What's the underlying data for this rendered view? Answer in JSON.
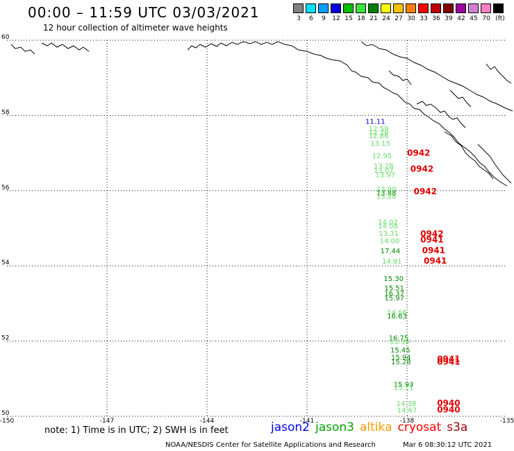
{
  "header": {
    "title": "00:00 – 11:59 UTC 03/03/2021",
    "subtitle": "12 hour collection of altimeter wave heights"
  },
  "color_scale": {
    "unit": "(ft)",
    "bins": [
      {
        "label": "3",
        "color": "#808080"
      },
      {
        "label": "6",
        "color": "#00e0ff"
      },
      {
        "label": "9",
        "color": "#00a0ff"
      },
      {
        "label": "12",
        "color": "#0000e0"
      },
      {
        "label": "15",
        "color": "#00c000"
      },
      {
        "label": "18",
        "color": "#40e040"
      },
      {
        "label": "21",
        "color": "#008000"
      },
      {
        "label": "24",
        "color": "#ffff00"
      },
      {
        "label": "27",
        "color": "#ffc000"
      },
      {
        "label": "30",
        "color": "#ff8000"
      },
      {
        "label": "33",
        "color": "#ff0000"
      },
      {
        "label": "36",
        "color": "#c00000"
      },
      {
        "label": "39",
        "color": "#800000"
      },
      {
        "label": "42",
        "color": "#a000a0"
      },
      {
        "label": "45",
        "color": "#d080d0"
      },
      {
        "label": "70",
        "color": "#ff80c0"
      },
      {
        "label": "",
        "color": "#000000"
      }
    ]
  },
  "map": {
    "lon_range": [
      -150,
      -135
    ],
    "lat_range": [
      50,
      60
    ],
    "lon_ticks": [
      "-150",
      "-147",
      "-144",
      "-141",
      "-138",
      "-135"
    ],
    "lat_ticks": [
      "60",
      "58",
      "56",
      "54",
      "52",
      "50"
    ]
  },
  "observations": [
    {
      "text": "11.11",
      "lon": -139.25,
      "lat": 57.78,
      "color": "#0000cc"
    },
    {
      "text": "12.59",
      "lon": -139.15,
      "lat": 57.58,
      "color": "#66dd66"
    },
    {
      "text": "12.70",
      "lon": -139.15,
      "lat": 57.48,
      "color": "#66dd66"
    },
    {
      "text": "12.86",
      "lon": -139.15,
      "lat": 57.4,
      "color": "#66dd66"
    },
    {
      "text": "13.15",
      "lon": -139.1,
      "lat": 57.2,
      "color": "#66dd66"
    },
    {
      "text": "12.95",
      "lon": -139.05,
      "lat": 56.86,
      "color": "#66dd66"
    },
    {
      "text": "13.28",
      "lon": -139.0,
      "lat": 56.6,
      "color": "#66dd66"
    },
    {
      "text": "13.07",
      "lon": -139.0,
      "lat": 56.48,
      "color": "#66dd66"
    },
    {
      "text": "13.97",
      "lon": -138.95,
      "lat": 56.36,
      "color": "#66dd66"
    },
    {
      "text": "13.90",
      "lon": -138.92,
      "lat": 55.98,
      "color": "#66dd66"
    },
    {
      "text": "13.88",
      "lon": -138.92,
      "lat": 55.88,
      "color": "#008800"
    },
    {
      "text": "13.28",
      "lon": -138.92,
      "lat": 55.78,
      "color": "#66dd66"
    },
    {
      "text": "14.02",
      "lon": -138.87,
      "lat": 55.1,
      "color": "#66dd66"
    },
    {
      "text": "14.08",
      "lon": -138.87,
      "lat": 55.0,
      "color": "#66dd66"
    },
    {
      "text": "13.31",
      "lon": -138.85,
      "lat": 54.8,
      "color": "#66dd66"
    },
    {
      "text": "14.00",
      "lon": -138.82,
      "lat": 54.6,
      "color": "#66dd66"
    },
    {
      "text": "17.44",
      "lon": -138.8,
      "lat": 54.34,
      "color": "#008800"
    },
    {
      "text": "14.91",
      "lon": -138.75,
      "lat": 54.06,
      "color": "#66dd66"
    },
    {
      "text": "15.30",
      "lon": -138.7,
      "lat": 53.6,
      "color": "#008800"
    },
    {
      "text": "15.51",
      "lon": -138.68,
      "lat": 53.35,
      "color": "#008800"
    },
    {
      "text": "16.37",
      "lon": -138.68,
      "lat": 53.2,
      "color": "#008800"
    },
    {
      "text": "15.97",
      "lon": -138.68,
      "lat": 53.08,
      "color": "#008800"
    },
    {
      "text": "14.66",
      "lon": -138.6,
      "lat": 52.7,
      "color": "#66dd66"
    },
    {
      "text": "16.63",
      "lon": -138.6,
      "lat": 52.6,
      "color": "#008800"
    },
    {
      "text": "16.75",
      "lon": -138.55,
      "lat": 52.02,
      "color": "#008800"
    },
    {
      "text": "15.99",
      "lon": -138.52,
      "lat": 51.92,
      "color": "#66dd66"
    },
    {
      "text": "15.45",
      "lon": -138.5,
      "lat": 51.7,
      "color": "#008800"
    },
    {
      "text": "15.94",
      "lon": -138.48,
      "lat": 51.5,
      "color": "#008800"
    },
    {
      "text": "15.28",
      "lon": -138.48,
      "lat": 51.38,
      "color": "#008800"
    },
    {
      "text": "15.93",
      "lon": -138.4,
      "lat": 50.78,
      "color": "#008800"
    },
    {
      "text": "15.11",
      "lon": -138.4,
      "lat": 50.7,
      "color": "#66dd66"
    },
    {
      "text": "14.38",
      "lon": -138.32,
      "lat": 50.28,
      "color": "#66dd66"
    },
    {
      "text": "14.67",
      "lon": -138.3,
      "lat": 50.1,
      "color": "#66dd66"
    }
  ],
  "pass_labels": [
    {
      "text": "0942",
      "lon": -138.0,
      "lat": 56.93
    },
    {
      "text": "0942",
      "lon": -137.9,
      "lat": 56.5
    },
    {
      "text": "0942",
      "lon": -137.8,
      "lat": 55.9
    },
    {
      "text": "0942",
      "lon": -137.6,
      "lat": 54.78
    },
    {
      "text": "0941",
      "lon": -137.6,
      "lat": 54.62
    },
    {
      "text": "0941",
      "lon": -137.55,
      "lat": 54.34
    },
    {
      "text": "0941",
      "lon": -137.5,
      "lat": 54.06
    },
    {
      "text": "0941",
      "lon": -137.1,
      "lat": 51.45
    },
    {
      "text": "0941",
      "lon": -137.1,
      "lat": 51.37
    },
    {
      "text": "0940",
      "lon": -137.1,
      "lat": 50.28
    },
    {
      "text": "0940",
      "lon": -137.1,
      "lat": 50.1
    }
  ],
  "footer": {
    "note": "note:  1) Time is in UTC;  2) SWH is in feet",
    "satellites": [
      {
        "name": "jason2",
        "color": "#0000ff"
      },
      {
        "name": "jason3",
        "color": "#00a000"
      },
      {
        "name": "altika",
        "color": "#ff9900"
      },
      {
        "name": "cryosat",
        "color": "#ff0000"
      },
      {
        "name": "s3a",
        "color": "#990000"
      }
    ],
    "credit": "NOAA/NESDIS Center for Satellite Applications and Research",
    "timestamp": "Mar  6 08:30:12 UTC 2021"
  }
}
